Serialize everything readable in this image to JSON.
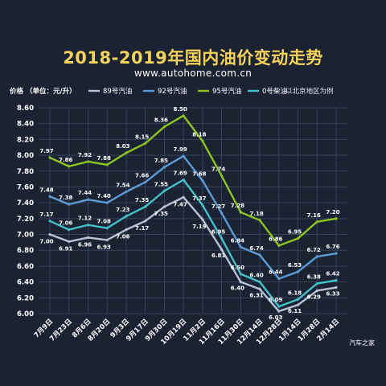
{
  "title": "2018-2019年国内油价变动走势",
  "subtitle": "www.autohome.com.cn",
  "watermark": "汽车之家",
  "chart_data": {
    "type": "line",
    "ylabel": "价格 （单位：元/升）",
    "note": "以北京地区为例",
    "ylim": [
      6.0,
      8.6
    ],
    "yticks": [
      "6.00",
      "6.20",
      "6.40",
      "6.60",
      "6.80",
      "7.00",
      "7.20",
      "7.40",
      "7.60",
      "7.80",
      "8.00",
      "8.20",
      "8.40",
      "8.60"
    ],
    "grid": true,
    "legend_position": "top",
    "categories": [
      "7月9日",
      "7月23日",
      "8月6日",
      "8月20日",
      "9月3日",
      "9月17日",
      "9月30日",
      "10月19日",
      "11月2日",
      "11月16日",
      "11月30日",
      "12月14日",
      "12月28日",
      "1月14日",
      "1月28日",
      "2月14日"
    ],
    "series": [
      {
        "name": "89号汽油",
        "color": "#b8c4d6",
        "label_color": "#ffffff",
        "values": [
          7.0,
          6.91,
          6.96,
          6.93,
          7.06,
          7.17,
          7.35,
          7.47,
          7.19,
          6.81,
          6.4,
          6.31,
          6.03,
          6.11,
          6.29,
          6.33
        ],
        "labels": [
          "7.00",
          "6.91",
          "6.96",
          "6.93",
          "7.06",
          "7.17",
          "7.35",
          "7.47",
          "7.19",
          "6.81",
          "6.40",
          "6.31",
          "6.03",
          "6.11",
          "6.29",
          "6.33"
        ]
      },
      {
        "name": "92号汽油",
        "color": "#5b9bd5",
        "label_color": "#ffffff",
        "values": [
          7.48,
          7.38,
          7.44,
          7.4,
          7.54,
          7.66,
          7.85,
          7.99,
          7.68,
          7.27,
          6.84,
          6.74,
          6.44,
          6.53,
          6.72,
          6.76
        ],
        "labels": [
          "7.48",
          "7.38",
          "7.44",
          "7.40",
          "7.54",
          "7.66",
          "7.85",
          "7.99",
          "7.68",
          "7.27",
          "6.84",
          "6.74",
          "6.44",
          "6.53",
          "6.72",
          "6.76"
        ]
      },
      {
        "name": "95号汽油",
        "color": "#8fc31f",
        "label_color": "#ffffff",
        "values": [
          7.97,
          7.86,
          7.92,
          7.88,
          8.03,
          8.15,
          8.36,
          8.5,
          8.18,
          7.74,
          7.28,
          7.18,
          6.86,
          6.95,
          7.16,
          7.2
        ],
        "labels": [
          "7.97",
          "7.86",
          "7.92",
          "7.88",
          "8.03",
          "8.15",
          "8.36",
          "8.50",
          "8.18",
          "7.74",
          "7.28",
          "7.18",
          "6.86",
          "6.95",
          "7.16",
          "7.20"
        ]
      },
      {
        "name": "0号柴油",
        "color": "#43c1c9",
        "label_color": "#ffffff",
        "values": [
          7.17,
          7.06,
          7.12,
          7.08,
          7.23,
          7.35,
          7.55,
          7.69,
          7.37,
          6.95,
          6.5,
          6.4,
          6.09,
          6.18,
          6.38,
          6.42
        ],
        "labels": [
          "7.17",
          "7.06",
          "7.12",
          "7.08",
          "7.23",
          "7.35",
          "7.55",
          "7.69",
          "7.37",
          "6.95",
          "6.50",
          "6.40",
          "6.09",
          "6.18",
          "6.38",
          "6.42"
        ]
      }
    ]
  }
}
